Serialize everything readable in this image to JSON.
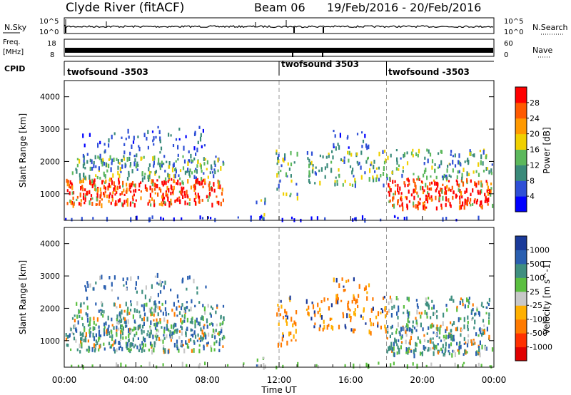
{
  "header": {
    "station": "Clyde River (fitACF)",
    "beam": "Beam 06",
    "date_range": "19/Feb/2016 - 20/Feb/2016"
  },
  "strips": {
    "nsky": {
      "label": "N.Sky",
      "left_ticks": [
        "10^5",
        "10^0"
      ],
      "right_ticks": [
        "10^5",
        "10^0"
      ],
      "right_label": "N.Search"
    },
    "freq": {
      "label_line1": "Freq.",
      "label_line2": "[MHz]",
      "left_ticks": [
        "18",
        "8"
      ],
      "right_ticks": [
        "60",
        "0"
      ],
      "right_label": "Nave"
    },
    "cpid": {
      "label": "CPID",
      "segments": [
        {
          "name": "twofsound -3503",
          "start_h": 0
        },
        {
          "name": "twofsound 3503",
          "start_h": 12
        },
        {
          "name": "twofsound -3503",
          "start_h": 18
        }
      ]
    }
  },
  "chart_data": [
    {
      "type": "heatmap",
      "name": "Power",
      "ylabel": "Slant Range [km]",
      "yticks": [
        "1000",
        "2000",
        "3000",
        "4000"
      ],
      "ylim": [
        180,
        4500
      ],
      "colorbar_label": "Power [dB]",
      "colorbar_ticks": [
        "4",
        "8",
        "12",
        "16",
        "20",
        "24",
        "28"
      ],
      "colors": [
        "#0000ff",
        "#2e4fd6",
        "#3a8a7a",
        "#5cb85c",
        "#f0d000",
        "#ff9900",
        "#ff5a00",
        "#ff0000"
      ]
    },
    {
      "type": "heatmap",
      "name": "Velocity",
      "ylabel": "Slant Range [km]",
      "yticks": [
        "1000",
        "2000",
        "3000",
        "4000"
      ],
      "ylim": [
        180,
        4500
      ],
      "colorbar_label": "Velocity [m s^-1]",
      "colorbar_ticks": [
        "1000",
        "500",
        "100",
        "25",
        "-25",
        "-100",
        "-500",
        "-1000"
      ],
      "colors": [
        "#1a3a9a",
        "#2a5fb0",
        "#3f8f80",
        "#5bbf40",
        "#c8c8c8",
        "#ffb000",
        "#ff7a00",
        "#ff3000",
        "#e00000"
      ]
    }
  ],
  "xaxis": {
    "label": "Time UT",
    "ticks": [
      "00:00",
      "04:00",
      "08:00",
      "12:00",
      "16:00",
      "20:00",
      "00:00"
    ]
  }
}
